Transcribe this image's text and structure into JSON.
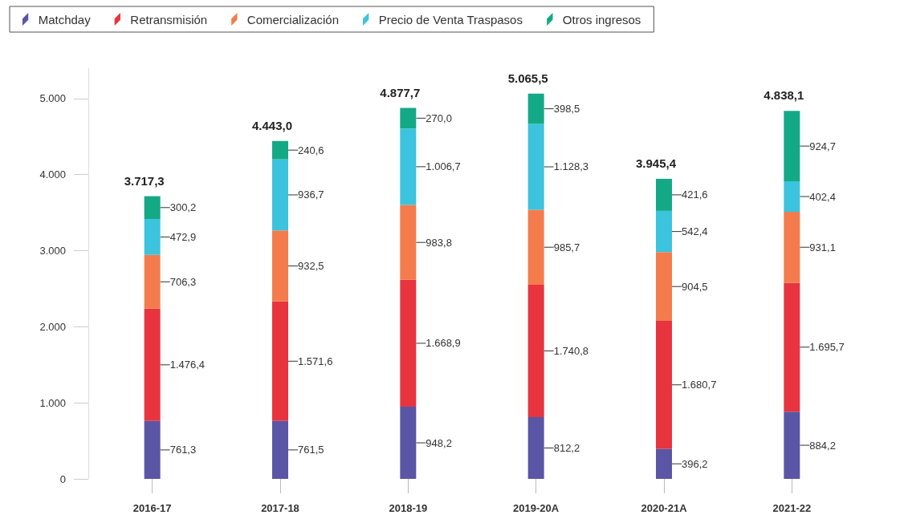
{
  "chart_data": {
    "type": "bar",
    "stacked": true,
    "categories": [
      "2016-17",
      "2017-18",
      "2018-19",
      "2019-20A",
      "2020-21A",
      "2021-22"
    ],
    "ylim": [
      0,
      5400
    ],
    "yticks": [
      0,
      {
        "value": 1000,
        "label": "1.000"
      },
      {
        "value": 2000,
        "label": "2.000"
      },
      {
        "value": 3000,
        "label": "3.000"
      },
      {
        "value": 4000,
        "label": "4.000"
      },
      {
        "value": 5000,
        "label": "5.000"
      }
    ],
    "grid": false,
    "legend": "top",
    "series": [
      {
        "name": "Matchday",
        "color": "#5b55a6",
        "values": [
          761.3,
          761.5,
          948.2,
          812.2,
          396.2,
          884.2
        ],
        "value_labels": [
          "761,3",
          "761,5",
          "948,2",
          "812,2",
          "396,2",
          "884,2"
        ]
      },
      {
        "name": "Retransmisión",
        "color": "#e8343f",
        "values": [
          1476.4,
          1571.6,
          1668.9,
          1740.8,
          1680.7,
          1695.7
        ],
        "value_labels": [
          "1.476,4",
          "1.571,6",
          "1.668,9",
          "1.740,8",
          "1.680,7",
          "1.695,7"
        ]
      },
      {
        "name": "Comercialización",
        "color": "#f47c4c",
        "values": [
          706.3,
          932.5,
          983.8,
          985.7,
          904.5,
          931.1
        ],
        "value_labels": [
          "706,3",
          "932,5",
          "983,8",
          "985,7",
          "904,5",
          "931,1"
        ]
      },
      {
        "name": "Precio de Venta Traspasos",
        "color": "#3cc3de",
        "values": [
          472.9,
          936.7,
          1006.7,
          1128.3,
          542.4,
          402.4
        ],
        "value_labels": [
          "472,9",
          "936,7",
          "1.006,7",
          "1.128,3",
          "542,4",
          "402,4"
        ]
      },
      {
        "name": "Otros ingresos",
        "color": "#14a986",
        "values": [
          300.2,
          240.6,
          270.0,
          398.5,
          421.6,
          924.7
        ],
        "value_labels": [
          "300,2",
          "240,6",
          "270,0",
          "398,5",
          "421,6",
          "924,7"
        ]
      }
    ],
    "totals": [
      "3.717,3",
      "4.443,0",
      "4.877,7",
      "5.065,5",
      "3.945,4",
      "4.838,1"
    ]
  }
}
